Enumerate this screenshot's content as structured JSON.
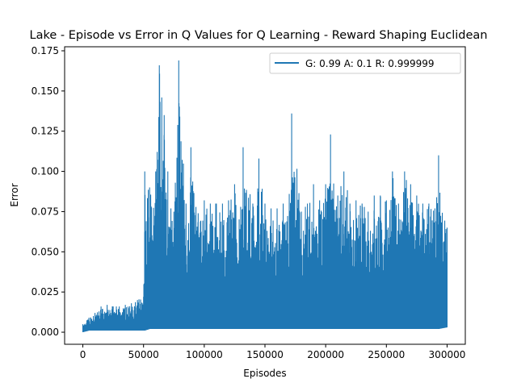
{
  "chart_data": {
    "type": "line",
    "title": "Lake - Episode vs Error in Q Values for Q Learning - Reward Shaping Euclidean",
    "xlabel": "Episodes",
    "ylabel": "Error",
    "xlim": [
      -15000,
      315000
    ],
    "ylim": [
      -0.0075,
      0.1775
    ],
    "x_ticks": [
      0,
      50000,
      100000,
      150000,
      200000,
      250000,
      300000
    ],
    "x_tick_labels": [
      "0",
      "50000",
      "100000",
      "150000",
      "200000",
      "250000",
      "300000"
    ],
    "y_ticks": [
      0.0,
      0.025,
      0.05,
      0.075,
      0.1,
      0.125,
      0.15,
      0.175
    ],
    "y_tick_labels": [
      "0.000",
      "0.025",
      "0.050",
      "0.075",
      "0.100",
      "0.125",
      "0.150",
      "0.175"
    ],
    "grid": false,
    "legend_position": "top-right",
    "series_color": "#1f77b4",
    "series": [
      {
        "name": "G: 0.99 A: 0.1 R: 0.999999",
        "description": "Noisy per-episode Q-value error over 300000 episodes",
        "x": [
          0,
          5000,
          10000,
          15000,
          20000,
          25000,
          30000,
          35000,
          40000,
          45000,
          50000,
          51000,
          55000,
          60000,
          63000,
          65000,
          67000,
          70000,
          75000,
          79000,
          85000,
          89000,
          95000,
          100000,
          105000,
          110000,
          115000,
          120000,
          125000,
          130000,
          132000,
          140000,
          145000,
          150000,
          155000,
          160000,
          165000,
          170000,
          172000,
          180000,
          185000,
          190000,
          195000,
          200000,
          204000,
          210000,
          215000,
          220000,
          225000,
          230000,
          235000,
          240000,
          245000,
          250000,
          255000,
          260000,
          265000,
          270000,
          275000,
          280000,
          285000,
          290000,
          293000,
          300000
        ],
        "y_max": [
          0.005,
          0.009,
          0.012,
          0.016,
          0.017,
          0.016,
          0.016,
          0.017,
          0.018,
          0.02,
          0.022,
          0.1,
          0.09,
          0.1,
          0.166,
          0.146,
          0.135,
          0.1,
          0.075,
          0.169,
          0.08,
          0.115,
          0.074,
          0.082,
          0.08,
          0.08,
          0.08,
          0.082,
          0.092,
          0.078,
          0.115,
          0.08,
          0.108,
          0.08,
          0.077,
          0.077,
          0.08,
          0.086,
          0.136,
          0.075,
          0.08,
          0.092,
          0.082,
          0.092,
          0.123,
          0.085,
          0.1,
          0.08,
          0.082,
          0.08,
          0.075,
          0.085,
          0.085,
          0.082,
          0.1,
          0.08,
          0.1,
          0.092,
          0.085,
          0.08,
          0.08,
          0.077,
          0.11,
          0.065
        ],
        "y_min": [
          0.0,
          0.001,
          0.001,
          0.001,
          0.001,
          0.001,
          0.001,
          0.001,
          0.001,
          0.001,
          0.001,
          0.001,
          0.002,
          0.002,
          0.002,
          0.002,
          0.002,
          0.002,
          0.002,
          0.002,
          0.002,
          0.002,
          0.002,
          0.002,
          0.002,
          0.002,
          0.002,
          0.002,
          0.002,
          0.002,
          0.002,
          0.002,
          0.002,
          0.002,
          0.002,
          0.002,
          0.002,
          0.002,
          0.002,
          0.002,
          0.002,
          0.002,
          0.002,
          0.002,
          0.002,
          0.002,
          0.002,
          0.002,
          0.002,
          0.002,
          0.002,
          0.002,
          0.002,
          0.002,
          0.002,
          0.002,
          0.002,
          0.002,
          0.002,
          0.002,
          0.002,
          0.002,
          0.002,
          0.003
        ]
      }
    ]
  }
}
